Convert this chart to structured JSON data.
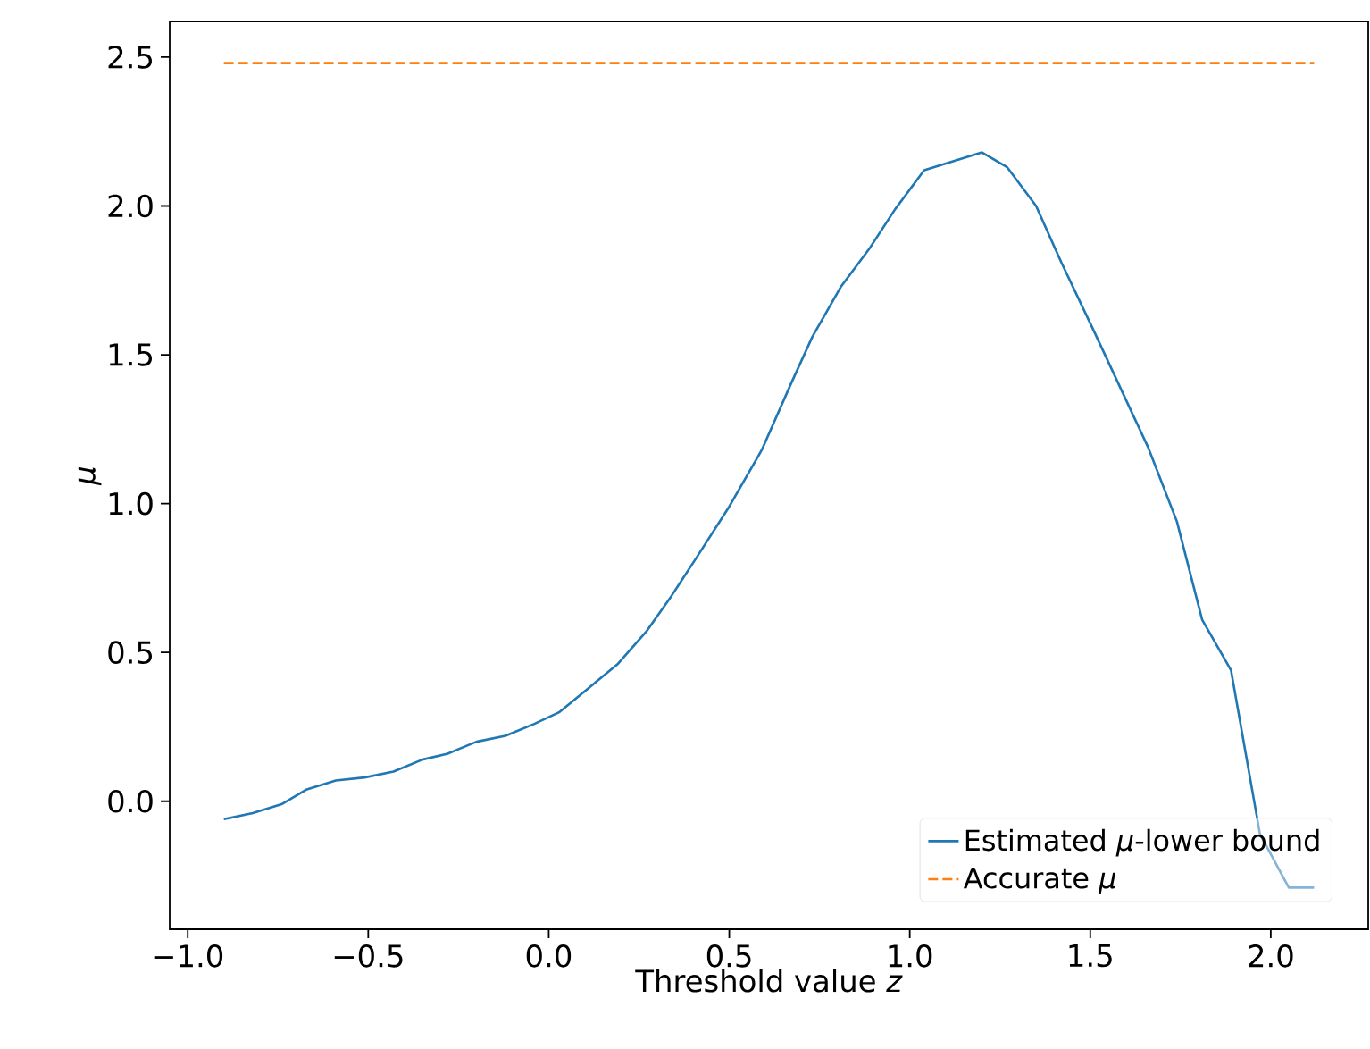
{
  "chart_data": {
    "type": "line",
    "xlabel": "Threshold value *z*",
    "ylabel": "*μ*",
    "xlim": [
      -1.05,
      2.27
    ],
    "ylim": [
      -0.43,
      2.62
    ],
    "xticks": [
      {
        "value": -1.0,
        "label": "−1.0"
      },
      {
        "value": -0.5,
        "label": "−0.5"
      },
      {
        "value": 0,
        "label": "0.0"
      },
      0.5,
      {
        "value": 1,
        "label": "1.0"
      },
      1.5,
      {
        "value": 2,
        "label": "2.0"
      }
    ],
    "yticks": [
      {
        "value": 0,
        "label": "0.0"
      },
      0.5,
      {
        "value": 1,
        "label": "1.0"
      },
      1.5,
      {
        "value": 2,
        "label": "2.0"
      },
      2.5
    ],
    "legend": "bottom right",
    "grid": false,
    "marker": "none",
    "series": [
      {
        "name": "Estimated *μ*-lower bound",
        "color": "#1f77b4",
        "line_style": "solid",
        "x": [
          -0.9,
          -0.82,
          -0.74,
          -0.67,
          -0.59,
          -0.51,
          -0.43,
          -0.35,
          -0.28,
          -0.2,
          -0.12,
          -0.04,
          0.03,
          0.11,
          0.19,
          0.27,
          0.34,
          0.41,
          0.5,
          0.59,
          0.67,
          0.73,
          0.81,
          0.89,
          0.96,
          1.04,
          1.2,
          1.27,
          1.35,
          1.42,
          1.51,
          1.66,
          1.74,
          1.81,
          1.89,
          1.97,
          2.05,
          2.12
        ],
        "values": [
          -0.06,
          -0.04,
          -0.01,
          0.04,
          0.07,
          0.08,
          0.1,
          0.14,
          0.16,
          0.2,
          0.22,
          0.26,
          0.3,
          0.38,
          0.46,
          0.57,
          0.69,
          0.82,
          0.99,
          1.18,
          1.4,
          1.56,
          1.73,
          1.86,
          1.99,
          2.12,
          2.18,
          2.13,
          2.0,
          1.81,
          1.58,
          1.19,
          0.94,
          0.61,
          0.44,
          -0.11,
          -0.29,
          -0.29
        ]
      },
      {
        "name": "Accurate *μ*",
        "color": "#ff7f0e",
        "line_style": "dashed",
        "x": [
          -0.9,
          2.12
        ],
        "values": [
          2.48,
          2.48
        ]
      }
    ]
  }
}
